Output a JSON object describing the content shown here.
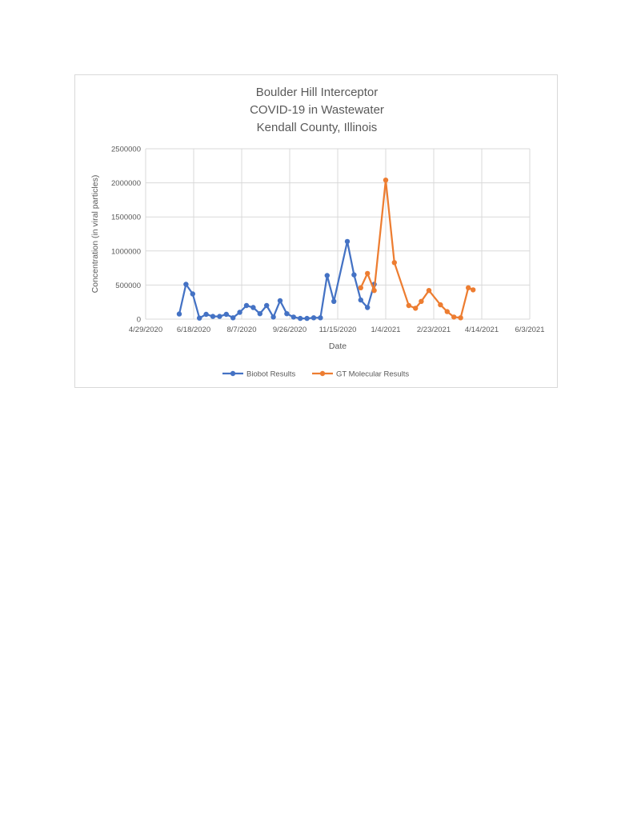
{
  "chart_data": {
    "type": "line",
    "title": [
      "Boulder Hill Interceptor",
      "COVID-19 in Wastewater",
      "Kendall County, Illinois"
    ],
    "xlabel": "Date",
    "ylabel": "Concentration (in viral particles)",
    "x_ticks": [
      "4/29/2020",
      "6/18/2020",
      "8/7/2020",
      "9/26/2020",
      "11/15/2020",
      "1/4/2021",
      "2/23/2021",
      "4/14/2021",
      "6/3/2021"
    ],
    "xlim": [
      "2020-04-29",
      "2021-06-03"
    ],
    "y_ticks": [
      0,
      500000,
      1000000,
      1500000,
      2000000,
      2500000
    ],
    "ylim": [
      0,
      2500000
    ],
    "grid": true,
    "legend_position": "bottom",
    "series": [
      {
        "name": "Biobot Results",
        "color": "#4472c4",
        "points": [
          {
            "x": "2020-06-03",
            "y": 75000
          },
          {
            "x": "2020-06-10",
            "y": 510000
          },
          {
            "x": "2020-06-17",
            "y": 370000
          },
          {
            "x": "2020-06-24",
            "y": 15000
          },
          {
            "x": "2020-07-01",
            "y": 70000
          },
          {
            "x": "2020-07-08",
            "y": 40000
          },
          {
            "x": "2020-07-15",
            "y": 40000
          },
          {
            "x": "2020-07-22",
            "y": 70000
          },
          {
            "x": "2020-07-29",
            "y": 20000
          },
          {
            "x": "2020-08-05",
            "y": 100000
          },
          {
            "x": "2020-08-12",
            "y": 200000
          },
          {
            "x": "2020-08-19",
            "y": 170000
          },
          {
            "x": "2020-08-26",
            "y": 80000
          },
          {
            "x": "2020-09-02",
            "y": 200000
          },
          {
            "x": "2020-09-09",
            "y": 30000
          },
          {
            "x": "2020-09-16",
            "y": 270000
          },
          {
            "x": "2020-09-23",
            "y": 80000
          },
          {
            "x": "2020-09-30",
            "y": 30000
          },
          {
            "x": "2020-10-07",
            "y": 10000
          },
          {
            "x": "2020-10-14",
            "y": 10000
          },
          {
            "x": "2020-10-21",
            "y": 20000
          },
          {
            "x": "2020-10-28",
            "y": 20000
          },
          {
            "x": "2020-11-04",
            "y": 640000
          },
          {
            "x": "2020-11-11",
            "y": 260000
          },
          {
            "x": "2020-11-25",
            "y": 1140000
          },
          {
            "x": "2020-12-02",
            "y": 650000
          },
          {
            "x": "2020-12-09",
            "y": 280000
          },
          {
            "x": "2020-12-16",
            "y": 170000
          },
          {
            "x": "2020-12-23",
            "y": 510000
          }
        ]
      },
      {
        "name": "GT Molecular Results",
        "color": "#ed7d31",
        "points": [
          {
            "x": "2020-12-09",
            "y": 460000
          },
          {
            "x": "2020-12-16",
            "y": 670000
          },
          {
            "x": "2020-12-23",
            "y": 420000
          },
          {
            "x": "2021-01-04",
            "y": 2040000
          },
          {
            "x": "2021-01-13",
            "y": 830000
          },
          {
            "x": "2021-01-28",
            "y": 200000
          },
          {
            "x": "2021-02-04",
            "y": 160000
          },
          {
            "x": "2021-02-10",
            "y": 260000
          },
          {
            "x": "2021-02-18",
            "y": 420000
          },
          {
            "x": "2021-03-02",
            "y": 210000
          },
          {
            "x": "2021-03-09",
            "y": 110000
          },
          {
            "x": "2021-03-16",
            "y": 30000
          },
          {
            "x": "2021-03-23",
            "y": 20000
          },
          {
            "x": "2021-03-31",
            "y": 460000
          },
          {
            "x": "2021-04-05",
            "y": 430000
          }
        ]
      }
    ]
  }
}
